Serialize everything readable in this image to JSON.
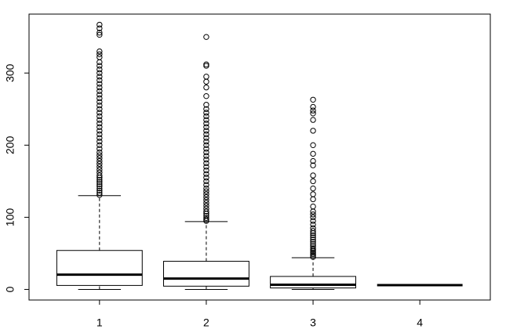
{
  "chart_data": {
    "type": "boxplot",
    "categories": [
      "1",
      "2",
      "3",
      "4"
    ],
    "boxes": [
      {
        "whisker_low": 0,
        "q1": 5.5,
        "median": 20.5,
        "q3": 54,
        "whisker_high": 130,
        "outliers": [
          131,
          134,
          137,
          140,
          143,
          146,
          149,
          152,
          155,
          158,
          162,
          166,
          170,
          174,
          178,
          182,
          186,
          190,
          195,
          200,
          205,
          210,
          215,
          220,
          225,
          230,
          235,
          240,
          245,
          250,
          255,
          260,
          265,
          270,
          275,
          280,
          285,
          290,
          295,
          300,
          305,
          310,
          315,
          322,
          326,
          330,
          353,
          356,
          362,
          367
        ]
      },
      {
        "whisker_low": 0,
        "q1": 4.5,
        "median": 15,
        "q3": 39,
        "whisker_high": 94,
        "outliers": [
          95,
          97,
          99,
          102,
          105,
          108,
          112,
          116,
          120,
          124,
          128,
          132,
          136,
          140,
          145,
          150,
          155,
          160,
          165,
          170,
          175,
          180,
          185,
          190,
          195,
          200,
          205,
          210,
          215,
          220,
          225,
          230,
          235,
          240,
          245,
          250,
          256,
          268,
          280,
          288,
          295,
          310,
          312,
          350
        ]
      },
      {
        "whisker_low": 0,
        "q1": 2,
        "median": 6.5,
        "q3": 18,
        "whisker_high": 44,
        "outliers": [
          45,
          47,
          49,
          51,
          53,
          55,
          57,
          60,
          63,
          66,
          69,
          72,
          75,
          78,
          81,
          85,
          90,
          95,
          100,
          104,
          108,
          115,
          125,
          132,
          140,
          150,
          158,
          172,
          178,
          188,
          200,
          220,
          235,
          244,
          248,
          253,
          263
        ]
      },
      {
        "whisker_low": 6,
        "q1": 6,
        "median": 6,
        "q3": 6,
        "whisker_high": 6,
        "outliers": []
      }
    ],
    "xlim": [
      0.34,
      4.66
    ],
    "xticks": [
      1,
      2,
      3,
      4
    ],
    "ylim": [
      -14.7,
      381.7
    ],
    "yticks": [
      0,
      100,
      200,
      300
    ],
    "color": "#000000"
  }
}
